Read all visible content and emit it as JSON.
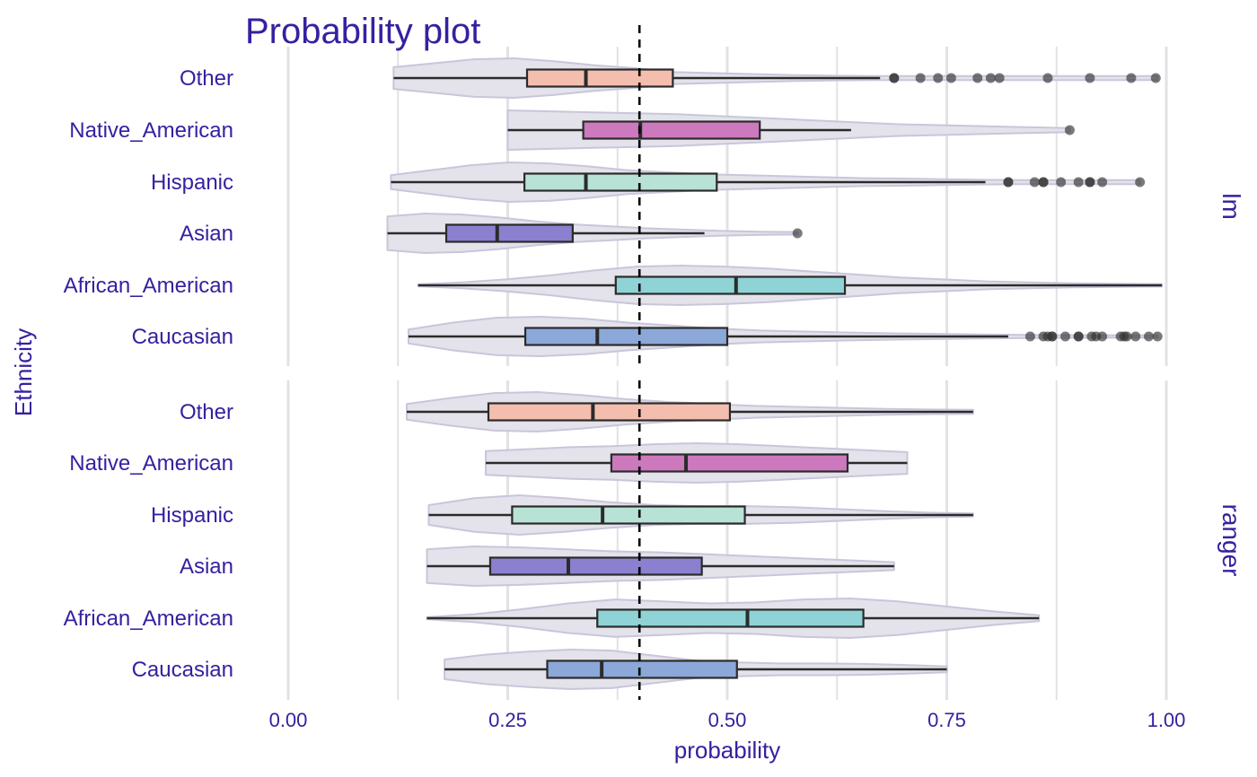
{
  "chart_data": {
    "type": "boxplot-violin",
    "title": "Probability plot",
    "xlabel": "probability",
    "ylabel": "Ethnicity",
    "xlim": [
      0,
      1
    ],
    "xticks": [
      0,
      0.25,
      0.5,
      0.75,
      1
    ],
    "xtick_labels": [
      "0.00",
      "0.25",
      "0.50",
      "0.75",
      "1.00"
    ],
    "reference_line": 0.4,
    "reference_line_style": "dashed",
    "grid": true,
    "categories": [
      "Other",
      "Native_American",
      "Hispanic",
      "Asian",
      "African_American",
      "Caucasian"
    ],
    "colors": {
      "Other": "#F4BEAF",
      "Native_American": "#CC79BE",
      "Hispanic": "#B8E2D6",
      "Asian": "#8A80CF",
      "African_American": "#8FD3D6",
      "Caucasian": "#8BA8D9",
      "text": "#3620A0",
      "violin_fill": "#E4E2EA",
      "violin_stroke": "#C9C6DA",
      "grid": "#E2E2E6"
    },
    "panels": [
      {
        "label": "lm",
        "groups": [
          {
            "name": "Other",
            "whisker_low": 0.12,
            "q1": 0.272,
            "median": 0.339,
            "q3": 0.438,
            "whisker_high": 0.674,
            "violin_min": 0.12,
            "violin_max": 0.99,
            "outliers": [
              0.69,
              0.69,
              0.72,
              0.74,
              0.755,
              0.785,
              0.8,
              0.81,
              0.865,
              0.913,
              0.96,
              0.988
            ],
            "density": [
              0.55,
              0.75,
              0.95,
              1.0,
              0.85,
              0.65,
              0.5,
              0.3,
              0.25,
              0.2,
              0.15,
              0.12,
              0.1,
              0.1,
              0.1,
              0.1,
              0.1,
              0.1,
              0.1,
              0.1
            ]
          },
          {
            "name": "Native_American",
            "whisker_low": 0.25,
            "q1": 0.336,
            "median": 0.401,
            "q3": 0.537,
            "whisker_high": 0.641,
            "violin_min": 0.25,
            "violin_max": 0.89,
            "outliers": [
              0.89
            ],
            "density": [
              1.0,
              0.95,
              0.9,
              0.85,
              0.8,
              0.7,
              0.6,
              0.5,
              0.4,
              0.3,
              0.25,
              0.2,
              0.15,
              0.1
            ]
          },
          {
            "name": "Hispanic",
            "whisker_low": 0.117,
            "q1": 0.269,
            "median": 0.339,
            "q3": 0.488,
            "whisker_high": 0.794,
            "violin_min": 0.117,
            "violin_max": 0.97,
            "outliers": [
              0.82,
              0.82,
              0.85,
              0.86,
              0.86,
              0.88,
              0.9,
              0.913,
              0.913,
              0.927,
              0.97
            ],
            "density": [
              0.35,
              0.6,
              0.85,
              1.0,
              0.95,
              0.8,
              0.6,
              0.5,
              0.4,
              0.35,
              0.3,
              0.25,
              0.2,
              0.18,
              0.15,
              0.12,
              0.1,
              0.1,
              0.1,
              0.1
            ]
          },
          {
            "name": "Asian",
            "whisker_low": 0.113,
            "q1": 0.18,
            "median": 0.238,
            "q3": 0.324,
            "whisker_high": 0.474,
            "violin_min": 0.113,
            "violin_max": 0.58,
            "outliers": [
              0.58
            ],
            "density": [
              0.85,
              1.0,
              0.95,
              0.8,
              0.6,
              0.45,
              0.35,
              0.25,
              0.18,
              0.12,
              0.08,
              0.06
            ]
          },
          {
            "name": "African_American",
            "whisker_low": 0.148,
            "q1": 0.373,
            "median": 0.51,
            "q3": 0.634,
            "whisker_high": 0.995,
            "violin_min": 0.148,
            "violin_max": 0.995,
            "outliers": [],
            "density": [
              0.05,
              0.15,
              0.3,
              0.5,
              0.75,
              0.95,
              1.0,
              0.95,
              0.85,
              0.7,
              0.55,
              0.4,
              0.3,
              0.2,
              0.15,
              0.1,
              0.08,
              0.06
            ]
          },
          {
            "name": "Caucasian",
            "whisker_low": 0.137,
            "q1": 0.27,
            "median": 0.352,
            "q3": 0.5,
            "whisker_high": 0.82,
            "violin_min": 0.137,
            "violin_max": 0.99,
            "outliers": [
              0.845,
              0.86,
              0.865,
              0.87,
              0.87,
              0.885,
              0.9,
              0.9,
              0.915,
              0.92,
              0.927,
              0.948,
              0.952,
              0.955,
              0.965,
              0.98,
              0.99
            ],
            "density": [
              0.35,
              0.7,
              0.95,
              1.0,
              0.9,
              0.7,
              0.55,
              0.4,
              0.3,
              0.25,
              0.2,
              0.16,
              0.13,
              0.1,
              0.08,
              0.07,
              0.06,
              0.06
            ]
          }
        ]
      },
      {
        "label": "ranger",
        "groups": [
          {
            "name": "Other",
            "whisker_low": 0.135,
            "q1": 0.228,
            "median": 0.347,
            "q3": 0.503,
            "whisker_high": 0.78,
            "violin_min": 0.135,
            "violin_max": 0.78,
            "outliers": [],
            "density": [
              0.4,
              0.7,
              0.95,
              1.0,
              0.85,
              0.65,
              0.5,
              0.4,
              0.3,
              0.25,
              0.2,
              0.15,
              0.12,
              0.1
            ]
          },
          {
            "name": "Native_American",
            "whisker_low": 0.225,
            "q1": 0.368,
            "median": 0.453,
            "q3": 0.637,
            "whisker_high": 0.705,
            "violin_min": 0.225,
            "violin_max": 0.705,
            "outliers": [],
            "density": [
              0.6,
              0.7,
              0.8,
              0.85,
              0.95,
              1.0,
              0.95,
              0.85,
              0.75,
              0.65,
              0.55
            ]
          },
          {
            "name": "Hispanic",
            "whisker_low": 0.16,
            "q1": 0.255,
            "median": 0.358,
            "q3": 0.52,
            "whisker_high": 0.78,
            "violin_min": 0.16,
            "violin_max": 0.78,
            "outliers": [],
            "density": [
              0.5,
              0.85,
              1.0,
              0.85,
              0.65,
              0.5,
              0.45,
              0.45,
              0.4,
              0.3,
              0.2,
              0.12,
              0.08
            ]
          },
          {
            "name": "Asian",
            "whisker_low": 0.158,
            "q1": 0.23,
            "median": 0.319,
            "q3": 0.471,
            "whisker_high": 0.69,
            "violin_min": 0.158,
            "violin_max": 0.69,
            "outliers": [],
            "density": [
              0.85,
              1.0,
              0.95,
              0.85,
              0.75,
              0.7,
              0.6,
              0.5,
              0.4,
              0.3,
              0.2
            ]
          },
          {
            "name": "African_American",
            "whisker_low": 0.158,
            "q1": 0.352,
            "median": 0.523,
            "q3": 0.655,
            "whisker_high": 0.855,
            "violin_min": 0.158,
            "violin_max": 0.855,
            "outliers": [],
            "density": [
              0.05,
              0.2,
              0.45,
              0.75,
              0.95,
              0.85,
              0.75,
              0.8,
              0.95,
              1.0,
              0.85,
              0.6,
              0.35,
              0.15
            ]
          },
          {
            "name": "Caucasian",
            "whisker_low": 0.178,
            "q1": 0.295,
            "median": 0.357,
            "q3": 0.511,
            "whisker_high": 0.75,
            "violin_min": 0.178,
            "violin_max": 0.75,
            "outliers": [],
            "density": [
              0.5,
              0.75,
              0.9,
              1.0,
              0.95,
              0.7,
              0.45,
              0.35,
              0.3,
              0.3,
              0.28,
              0.22,
              0.15
            ]
          }
        ]
      }
    ]
  }
}
